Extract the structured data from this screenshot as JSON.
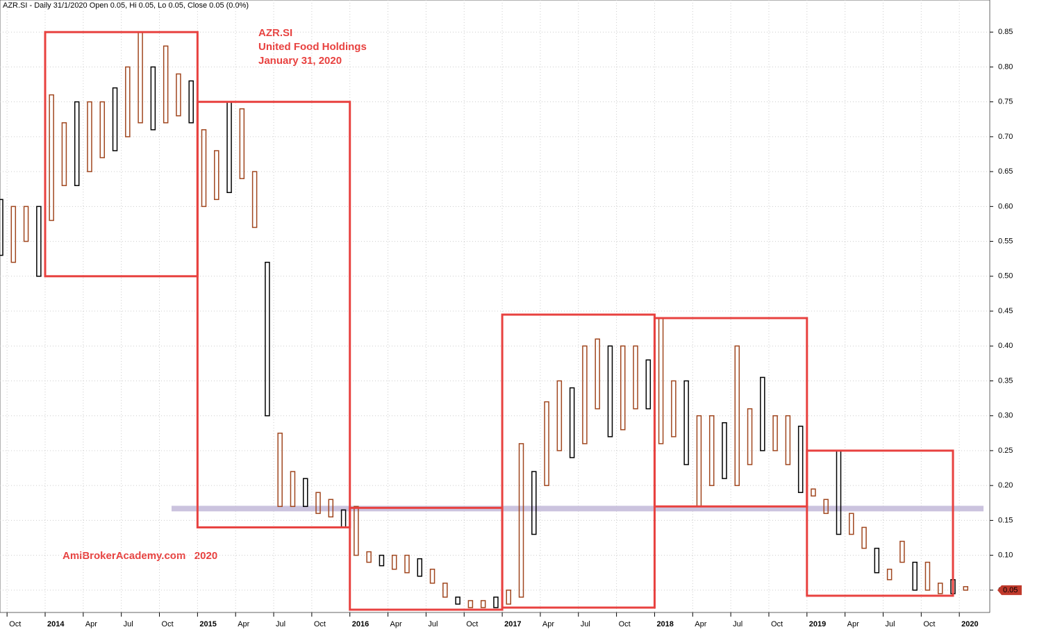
{
  "chart_data": {
    "type": "range",
    "title": "AZR.SI - Daily 31/1/2020 Open 0.05, Hi 0.05, Lo 0.05, Close 0.05 (0.0%)",
    "annotations": [
      "AZR.SI",
      "United Food Holdings",
      "January 31, 2020",
      "AmiBrokerAcademy.com   2020"
    ],
    "categories": [
      null,
      "Oct",
      null,
      null,
      "2014",
      null,
      null,
      "Apr",
      null,
      null,
      "Jul",
      null,
      null,
      "Oct",
      null,
      null,
      "2015",
      null,
      null,
      "Apr",
      null,
      null,
      "Jul",
      null,
      null,
      "Oct",
      null,
      null,
      "2016",
      null,
      null,
      "Apr",
      null,
      null,
      "Jul",
      null,
      null,
      "Oct",
      null,
      null,
      "2017",
      null,
      null,
      "Apr",
      null,
      null,
      "Jul",
      null,
      null,
      "Oct",
      null,
      null,
      "2018",
      null,
      null,
      "Apr",
      null,
      null,
      "Jul",
      null,
      null,
      "Oct",
      null,
      null,
      "2019",
      null,
      null,
      "Apr",
      null,
      null,
      "Jul",
      null,
      null,
      "Oct",
      null,
      null,
      "2020"
    ],
    "high": [
      0.61,
      0.6,
      0.6,
      0.6,
      0.76,
      0.72,
      0.75,
      0.75,
      0.75,
      0.77,
      0.8,
      0.85,
      0.8,
      0.83,
      0.79,
      0.78,
      0.71,
      0.68,
      0.75,
      0.74,
      0.65,
      0.52,
      0.275,
      0.22,
      0.21,
      0.19,
      0.18,
      0.165,
      0.17,
      0.105,
      0.1,
      0.1,
      0.1,
      0.095,
      0.08,
      0.06,
      0.04,
      0.035,
      0.035,
      0.04,
      0.05,
      0.26,
      0.22,
      0.32,
      0.35,
      0.34,
      0.4,
      0.41,
      0.4,
      0.4,
      0.4,
      0.38,
      0.44,
      0.35,
      0.35,
      0.3,
      0.3,
      0.29,
      0.4,
      0.31,
      0.355,
      0.3,
      0.3,
      0.285,
      0.195,
      0.18,
      0.25,
      0.16,
      0.14,
      0.11,
      0.08,
      0.12,
      0.09,
      0.09,
      0.06,
      0.065,
      0.055
    ],
    "low": [
      0.53,
      0.52,
      0.55,
      0.5,
      0.58,
      0.63,
      0.63,
      0.65,
      0.67,
      0.68,
      0.7,
      0.72,
      0.71,
      0.72,
      0.73,
      0.72,
      0.6,
      0.61,
      0.62,
      0.64,
      0.57,
      0.3,
      0.17,
      0.17,
      0.17,
      0.16,
      0.155,
      0.14,
      0.1,
      0.09,
      0.085,
      0.08,
      0.075,
      0.07,
      0.06,
      0.04,
      0.03,
      0.025,
      0.025,
      0.025,
      0.03,
      0.04,
      0.13,
      0.2,
      0.25,
      0.24,
      0.26,
      0.31,
      0.27,
      0.28,
      0.31,
      0.31,
      0.26,
      0.27,
      0.23,
      0.17,
      0.2,
      0.21,
      0.2,
      0.23,
      0.25,
      0.25,
      0.23,
      0.19,
      0.185,
      0.16,
      0.13,
      0.13,
      0.11,
      0.075,
      0.065,
      0.09,
      0.05,
      0.05,
      0.045,
      0.045,
      0.05
    ],
    "color": "#a0461e",
    "last_value": 0.05,
    "last_label": "0.05",
    "reference_line": 0.167,
    "reference_color": "#cbc3de",
    "boxes": [
      {
        "start": 4,
        "end": 16,
        "low": 0.5,
        "high": 0.85
      },
      {
        "start": 16,
        "end": 28,
        "low": 0.14,
        "high": 0.75
      },
      {
        "start": 28,
        "end": 40,
        "low": 0.022,
        "high": 0.168
      },
      {
        "start": 40,
        "end": 52,
        "low": 0.025,
        "high": 0.445
      },
      {
        "start": 52,
        "end": 64,
        "low": 0.17,
        "high": 0.44
      },
      {
        "start": 64,
        "end": 75.5,
        "low": 0.042,
        "high": 0.25
      }
    ],
    "box_color": "#e8413f",
    "ylim": [
      0.018,
      0.896
    ],
    "yticks": [
      0.05,
      {
        "value": 0.1,
        "label": "0.10"
      },
      0.15,
      {
        "value": 0.2,
        "label": "0.20"
      },
      0.25,
      {
        "value": 0.3,
        "label": "0.30"
      },
      0.35,
      {
        "value": 0.4,
        "label": "0.40"
      },
      0.45,
      {
        "value": 0.5,
        "label": "0.50"
      },
      0.55,
      {
        "value": 0.6,
        "label": "0.60"
      },
      0.65,
      {
        "value": 0.7,
        "label": "0.70"
      },
      0.75,
      {
        "value": 0.8,
        "label": "0.80"
      },
      0.85
    ],
    "grid": true
  }
}
